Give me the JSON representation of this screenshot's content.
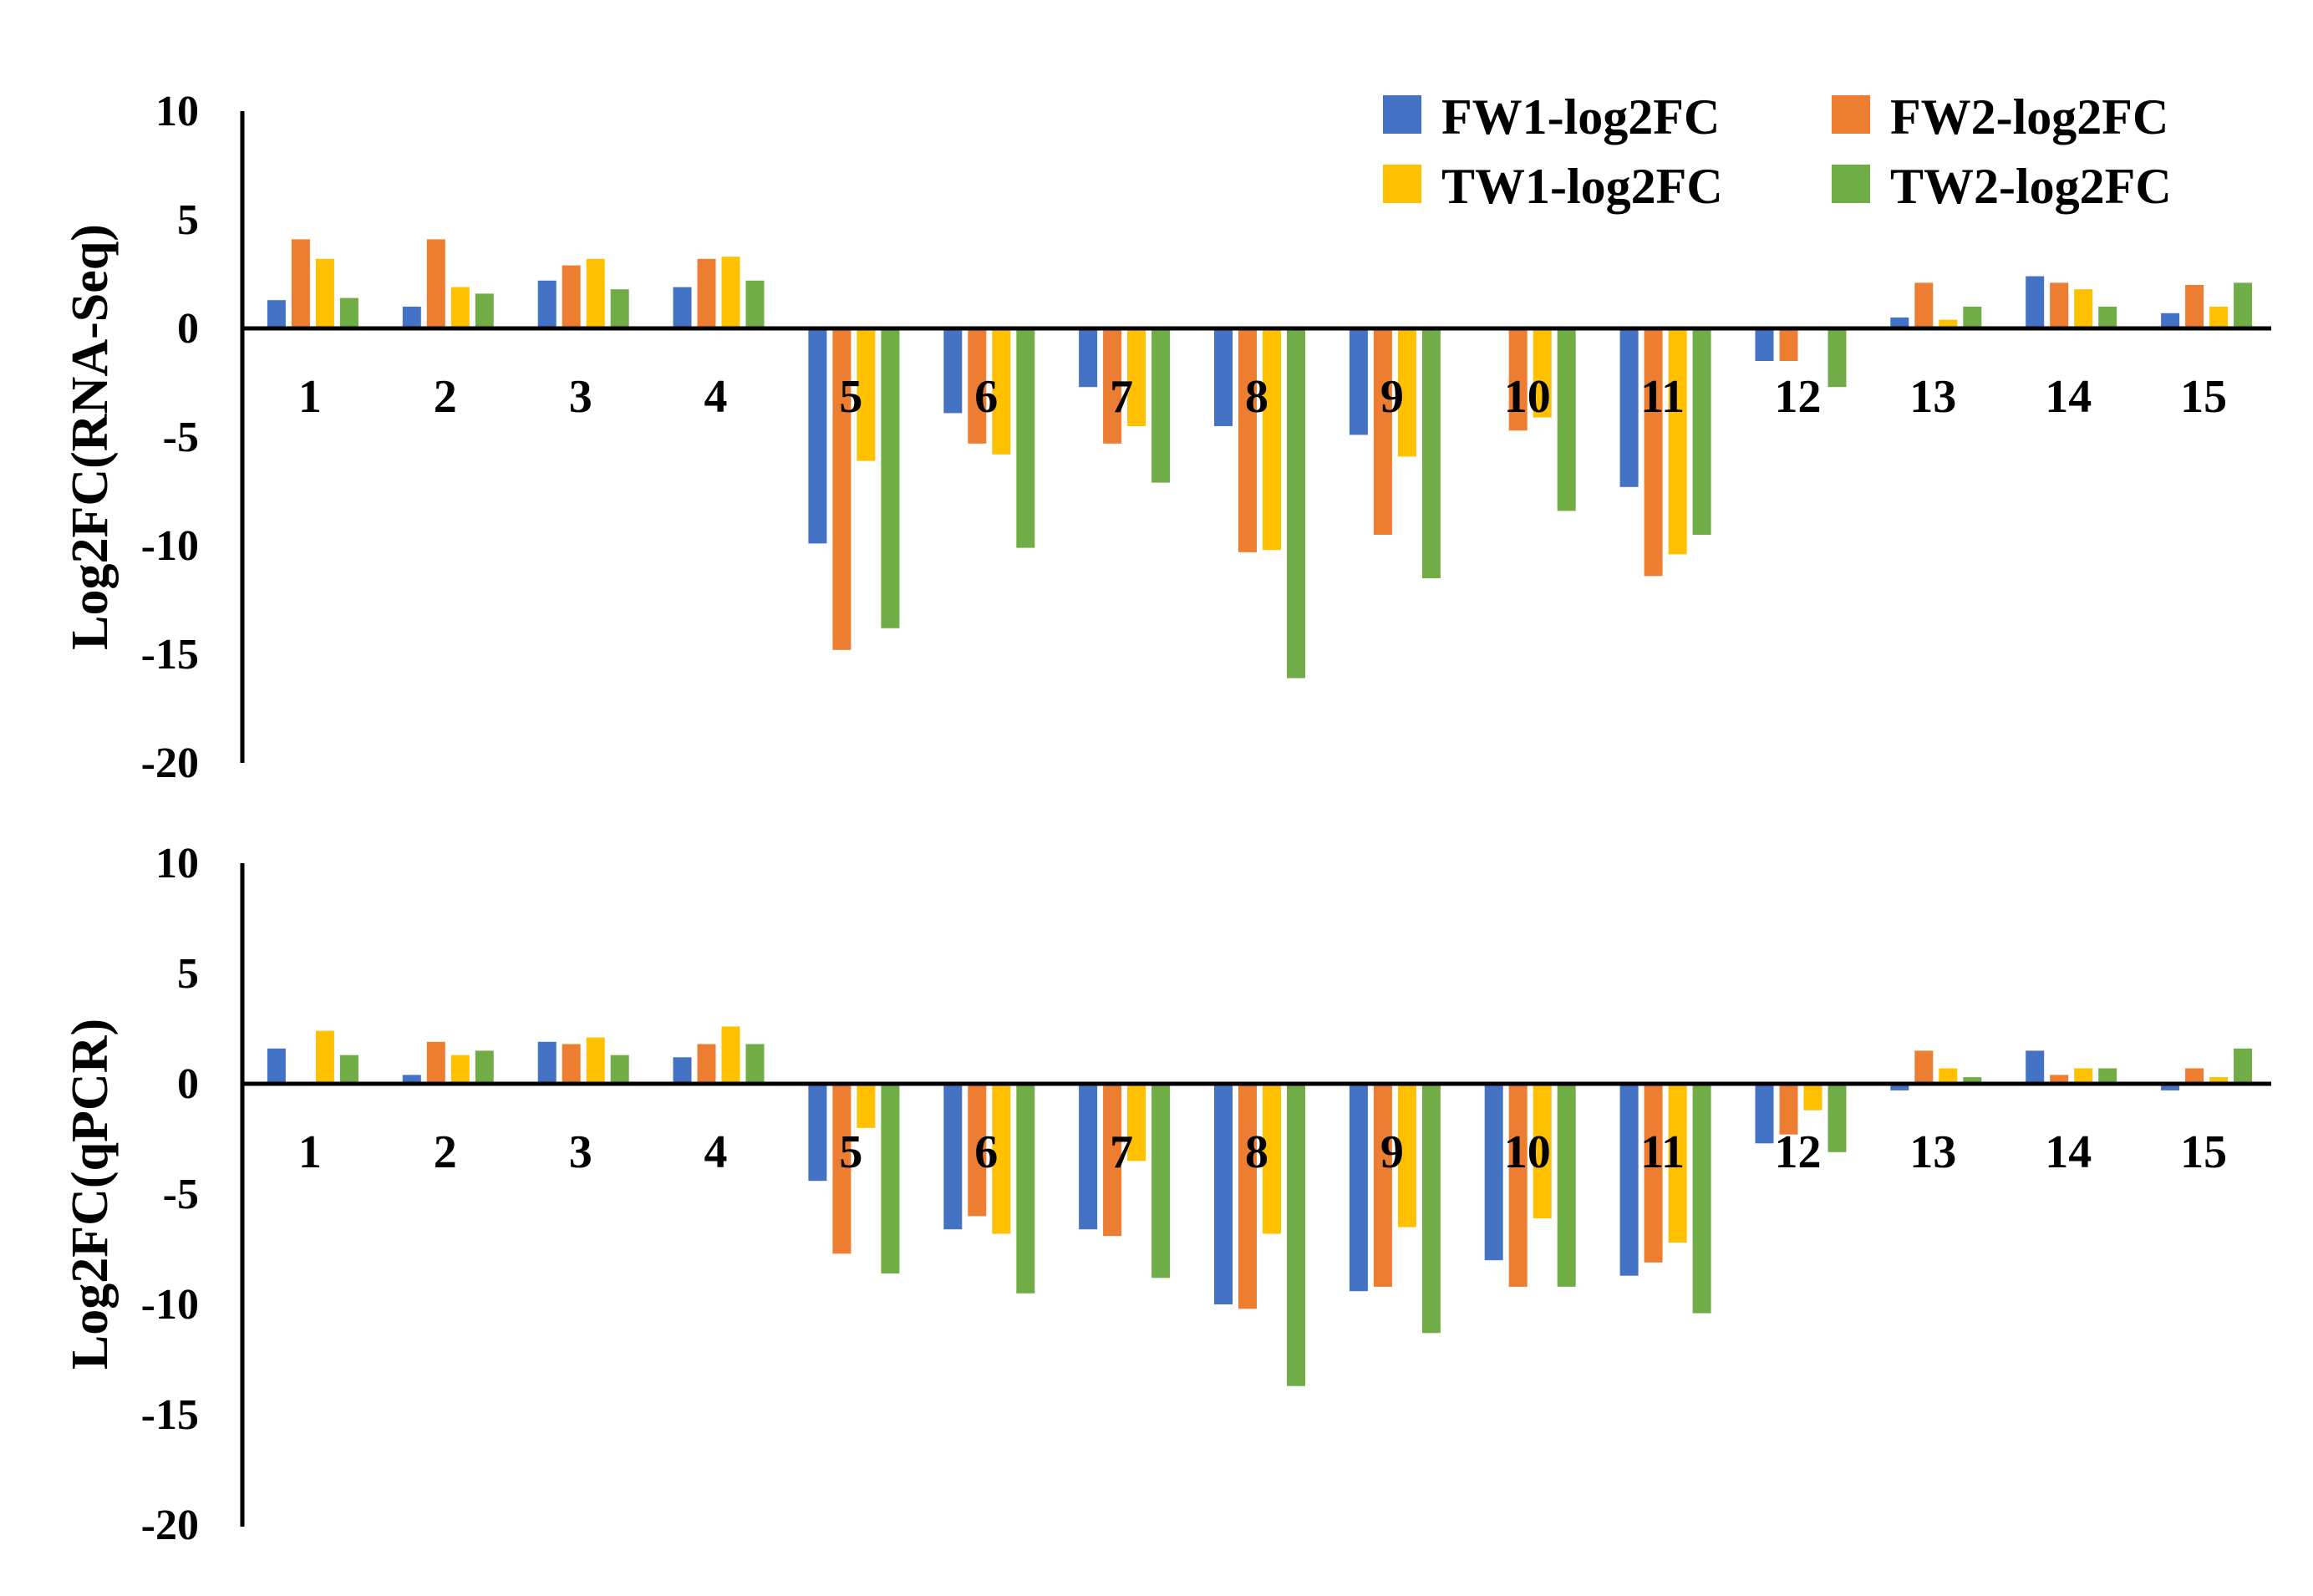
{
  "legend": {
    "position": "top-right",
    "items": [
      {
        "label": "FW1-log2FC",
        "color": "#4472C4"
      },
      {
        "label": "FW2-log2FC",
        "color": "#ED7D31"
      },
      {
        "label": "TW1-log2FC",
        "color": "#FFC000"
      },
      {
        "label": "TW2-log2FC",
        "color": "#70AD47"
      }
    ]
  },
  "chart_data": [
    {
      "type": "bar",
      "ylabel": "Log2FC(RNA-Seq)",
      "ylim": [
        -20,
        10
      ],
      "yticks": [
        10,
        5,
        0,
        -5,
        -10,
        -15,
        -20
      ],
      "grid": false,
      "categories": [
        "1",
        "2",
        "3",
        "4",
        "5",
        "6",
        "7",
        "8",
        "9",
        "10",
        "11",
        "12",
        "13",
        "14",
        "15"
      ],
      "series": [
        {
          "name": "FW1-log2FC",
          "color": "#4472C4",
          "values": [
            1.3,
            1.0,
            2.2,
            1.9,
            -9.9,
            -3.9,
            -2.7,
            -4.5,
            -4.9,
            0,
            -7.3,
            -1.5,
            0.5,
            2.4,
            0.7
          ]
        },
        {
          "name": "FW2-log2FC",
          "color": "#ED7D31",
          "values": [
            4.1,
            4.1,
            2.9,
            3.2,
            -14.8,
            -5.3,
            -5.3,
            -10.3,
            -9.5,
            -4.7,
            -11.4,
            -1.5,
            2.1,
            2.1,
            2.0
          ]
        },
        {
          "name": "TW1-log2FC",
          "color": "#FFC000",
          "values": [
            3.2,
            1.9,
            3.2,
            3.3,
            -6.1,
            -5.8,
            -4.5,
            -10.2,
            -5.9,
            -4.1,
            -10.4,
            0,
            0.4,
            1.8,
            1.0
          ]
        },
        {
          "name": "TW2-log2FC",
          "color": "#70AD47",
          "values": [
            1.4,
            1.6,
            1.8,
            2.2,
            -13.8,
            -10.1,
            -7.1,
            -16.1,
            -11.5,
            -8.4,
            -9.5,
            -2.7,
            1.0,
            1.0,
            2.1
          ]
        }
      ]
    },
    {
      "type": "bar",
      "ylabel": "Log2FC(qPCR)",
      "ylim": [
        -20,
        10
      ],
      "yticks": [
        10,
        5,
        0,
        -5,
        -10,
        -15,
        -20
      ],
      "grid": false,
      "categories": [
        "1",
        "2",
        "3",
        "4",
        "5",
        "6",
        "7",
        "8",
        "9",
        "10",
        "11",
        "12",
        "13",
        "14",
        "15"
      ],
      "series": [
        {
          "name": "FW1-log2FC",
          "color": "#4472C4",
          "values": [
            1.6,
            0.4,
            1.9,
            1.2,
            -4.4,
            -6.6,
            -6.6,
            -10.0,
            -9.4,
            -8.0,
            -8.7,
            -2.7,
            -0.3,
            1.5,
            -0.3
          ]
        },
        {
          "name": "FW2-log2FC",
          "color": "#ED7D31",
          "values": [
            0,
            1.9,
            1.8,
            1.8,
            -7.7,
            -6.0,
            -6.9,
            -10.2,
            -9.2,
            -9.2,
            -8.1,
            -2.3,
            1.5,
            0.4,
            0.7
          ]
        },
        {
          "name": "TW1-log2FC",
          "color": "#FFC000",
          "values": [
            2.4,
            1.3,
            2.1,
            2.6,
            -2.0,
            -6.8,
            -3.5,
            -6.8,
            -6.5,
            -6.1,
            -7.2,
            -1.2,
            0.7,
            0.7,
            0.3
          ]
        },
        {
          "name": "TW2-log2FC",
          "color": "#70AD47",
          "values": [
            1.3,
            1.5,
            1.3,
            1.8,
            -8.6,
            -9.5,
            -8.8,
            -13.7,
            -11.3,
            -9.2,
            -10.4,
            -3.1,
            0.3,
            0.7,
            1.6
          ]
        }
      ]
    }
  ]
}
